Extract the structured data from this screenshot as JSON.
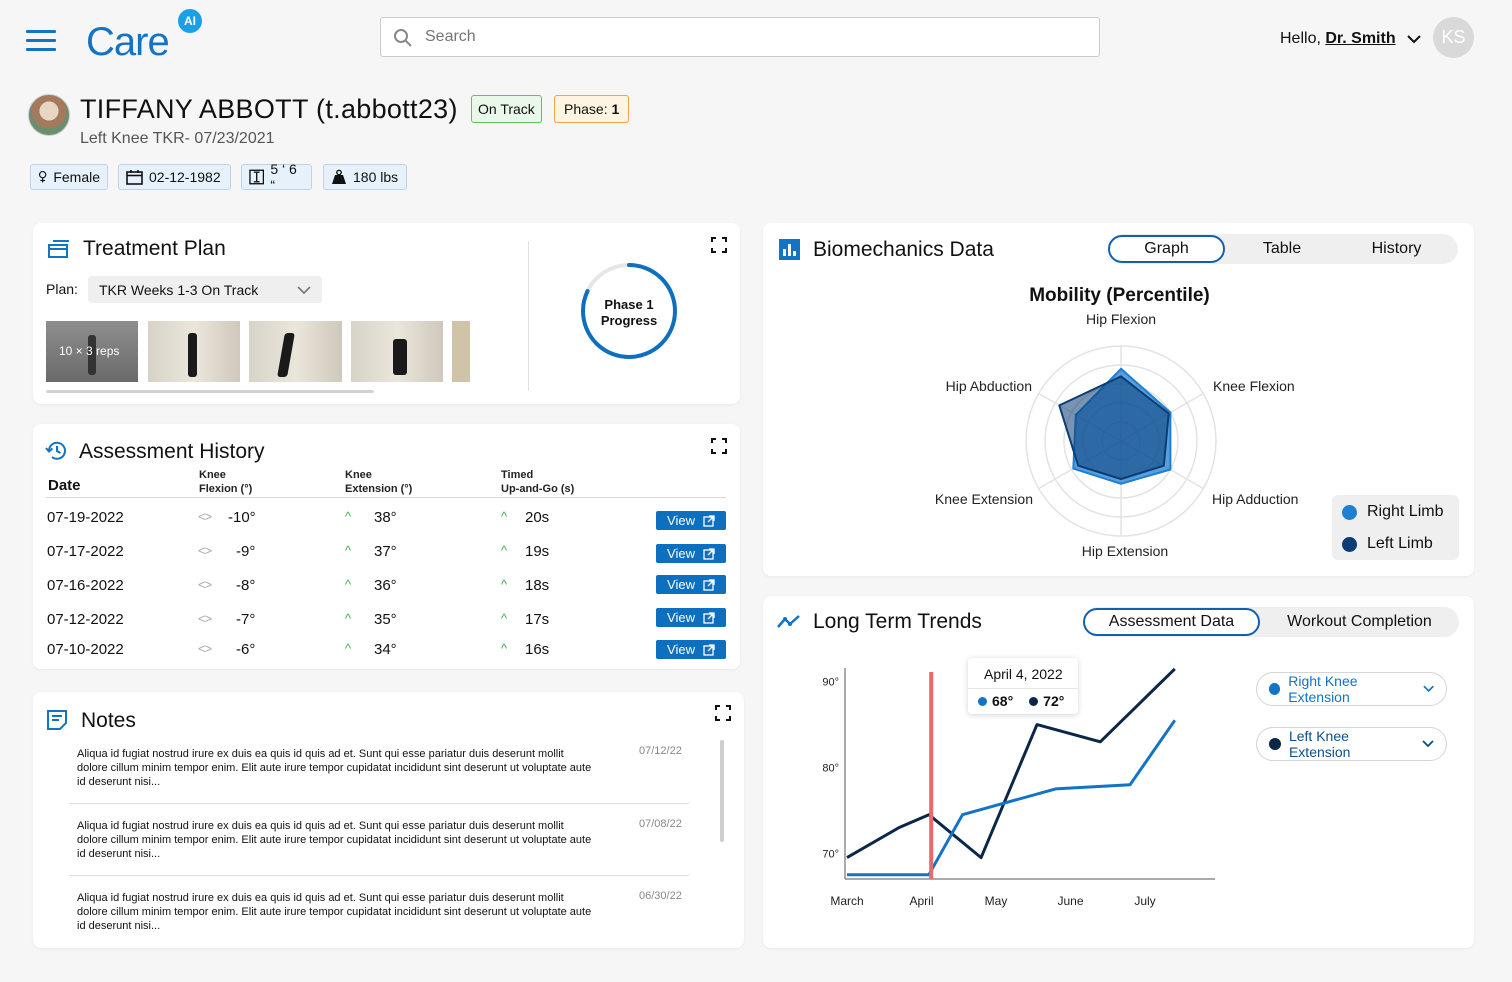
{
  "header": {
    "logo_text": "Care",
    "logo_badge": "AI",
    "search_placeholder": "Search",
    "greeting": "Hello, ",
    "user_name": "Dr. Smith",
    "avatar_initials": "KS"
  },
  "patient": {
    "name": "TIFFANY ABBOTT (t.abbott23)",
    "status": "On Track",
    "phase_label": "Phase: ",
    "phase_value": "1",
    "subtitle": "Left Knee TKR- 07/23/2021",
    "gender": "Female",
    "dob": "02-12-1982",
    "height": "5 ‘ 6 “",
    "weight": "180 lbs"
  },
  "treatment_plan": {
    "title": "Treatment Plan",
    "plan_label": "Plan:",
    "plan_value": "TKR Weeks 1-3 On Track",
    "first_thumb_caption": "10 × 3 reps",
    "progress_line1": "Phase 1",
    "progress_line2": "Progress",
    "progress_fraction": 0.82
  },
  "assessment_history": {
    "title": "Assessment History",
    "columns": {
      "date": "Date",
      "knee_flexion_1": "Knee",
      "knee_flexion_2": "Flexion (°)",
      "knee_extension_1": "Knee",
      "knee_extension_2": "Extension (°)",
      "tug_1": "Timed",
      "tug_2": "Up-and-Go (s)"
    },
    "view_label": "View",
    "rows": [
      {
        "date": "07-19-2022",
        "flexion": "-10°",
        "extension": "38°",
        "tug": "20s"
      },
      {
        "date": "07-17-2022",
        "flexion": "-9°",
        "extension": "37°",
        "tug": "19s"
      },
      {
        "date": "07-16-2022",
        "flexion": "-8°",
        "extension": "36°",
        "tug": "18s"
      },
      {
        "date": "07-12-2022",
        "flexion": "-7°",
        "extension": "35°",
        "tug": "17s"
      },
      {
        "date": "07-10-2022",
        "flexion": "-6°",
        "extension": "34°",
        "tug": "16s"
      }
    ]
  },
  "notes": {
    "title": "Notes",
    "items": [
      {
        "text": "Aliqua id fugiat nostrud irure ex duis ea quis id quis ad et. Sunt qui esse pariatur duis deserunt mollit dolore cillum minim tempor enim. Elit aute irure tempor cupidatat incididunt sint deserunt ut voluptate aute id deserunt nisi...",
        "date": "07/12/22"
      },
      {
        "text": "Aliqua id fugiat nostrud irure ex duis ea quis id quis ad et. Sunt qui esse pariatur duis deserunt mollit dolore cillum minim tempor enim. Elit aute irure tempor cupidatat incididunt sint deserunt ut voluptate aute id deserunt nisi...",
        "date": "07/08/22"
      },
      {
        "text": "Aliqua id fugiat nostrud irure ex duis ea quis id quis ad et. Sunt qui esse pariatur duis deserunt mollit dolore cillum minim tempor enim. Elit aute irure tempor cupidatat incididunt sint deserunt ut voluptate aute id deserunt nisi...",
        "date": "06/30/22"
      }
    ]
  },
  "biomechanics": {
    "title": "Biomechanics Data",
    "tabs": [
      "Graph",
      "Table",
      "History"
    ],
    "active_tab": "Graph",
    "legend": [
      "Right Limb",
      "Left Limb"
    ]
  },
  "trends": {
    "title": "Long Term Trends",
    "tabs": [
      "Assessment Data",
      "Workout Completion"
    ],
    "active_tab": "Assessment Data",
    "tooltip_date": "April 4, 2022",
    "tooltip_right": "68°",
    "tooltip_left": "72°",
    "dropdowns": [
      "Right Knee Extension",
      "Left Knee Extension"
    ]
  },
  "colors": {
    "primary": "#0d6fbf",
    "navy": "#0b2747",
    "on_track_bg": "#e9f8e9",
    "on_track_border": "#5cc65c",
    "phase_bg": "#fff3e2",
    "phase_border": "#f1a44b",
    "marker": "#e86a6a"
  },
  "chart_data": [
    {
      "type": "radar",
      "title": "Mobility (Percentile)",
      "axes": [
        "Hip Flexion",
        "Knee Flexion",
        "Hip Adduction",
        "Hip Extension",
        "Knee Extension",
        "Hip Abduction"
      ],
      "series": [
        {
          "name": "Right Limb",
          "color": "#1f7fd1",
          "values": [
            76,
            60,
            60,
            45,
            58,
            55
          ]
        },
        {
          "name": "Left Limb",
          "color": "#0b3d74",
          "values": [
            68,
            58,
            52,
            40,
            52,
            75
          ]
        }
      ],
      "range": [
        0,
        100
      ],
      "rings": 5
    },
    {
      "type": "line",
      "categories": [
        "March",
        "April",
        "May",
        "June",
        "July"
      ],
      "y_ticks": [
        "70°",
        "80°",
        "90°"
      ],
      "ylim": [
        67,
        93
      ],
      "series": [
        {
          "name": "Right Knee Extension",
          "color": "#1373c4",
          "points": [
            [
              0,
              67.5
            ],
            [
              0.6,
              67.5
            ],
            [
              1.1,
              67.5
            ],
            [
              1.55,
              74.5
            ],
            [
              2.8,
              77.5
            ],
            [
              3.8,
              78
            ],
            [
              4.4,
              85.5
            ]
          ]
        },
        {
          "name": "Left Knee Extension",
          "color": "#0b2747",
          "points": [
            [
              0,
              69.5
            ],
            [
              0.7,
              73
            ],
            [
              1.1,
              74.5
            ],
            [
              1.8,
              69.5
            ],
            [
              2.55,
              85
            ],
            [
              3.4,
              83
            ],
            [
              4.4,
              91.5
            ]
          ]
        }
      ],
      "marker_x": 1.13
    }
  ]
}
